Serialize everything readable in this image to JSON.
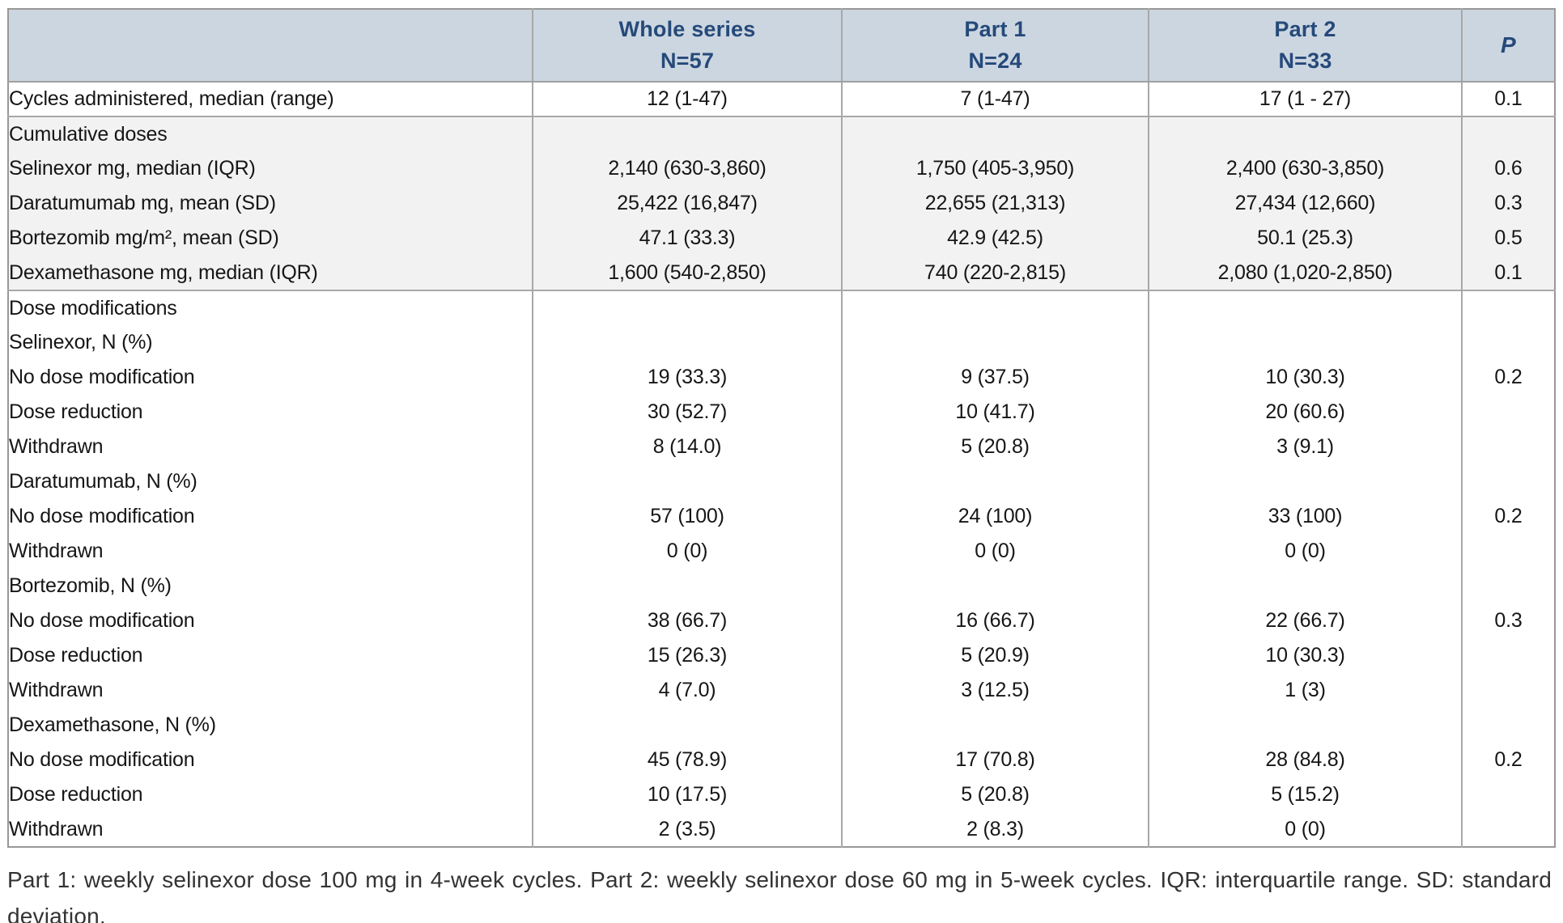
{
  "colors": {
    "header_bg": "#ccd6e0",
    "header_text": "#25497a",
    "section_shade": "#f2f2f2",
    "border": "#a8a8a8"
  },
  "table": {
    "p_header": "P",
    "columns": [
      {
        "label": "Whole series",
        "sub": "N=57"
      },
      {
        "label": "Part 1",
        "sub": "N=24"
      },
      {
        "label": "Part 2",
        "sub": "N=33"
      }
    ],
    "rows": [
      {
        "label": "Cycles administered, median (range)",
        "indent": 0,
        "shaded": false,
        "section_start": false,
        "values": [
          "12 (1-47)",
          "7 (1-47)",
          "17 (1 - 27)"
        ],
        "p": "0.1"
      },
      {
        "label": "Cumulative doses",
        "indent": 0,
        "shaded": true,
        "section_start": true,
        "values": [
          "",
          "",
          ""
        ],
        "p": ""
      },
      {
        "label": "Selinexor mg, median (IQR)",
        "indent": 1,
        "shaded": true,
        "section_start": false,
        "values": [
          "2,140 (630-3,860)",
          "1,750 (405-3,950)",
          "2,400 (630-3,850)"
        ],
        "p": "0.6"
      },
      {
        "label": "Daratumumab mg, mean (SD)",
        "indent": 1,
        "shaded": true,
        "section_start": false,
        "values": [
          "25,422 (16,847)",
          "22,655 (21,313)",
          "27,434 (12,660)"
        ],
        "p": "0.3"
      },
      {
        "label": "Bortezomib mg/m², mean (SD)",
        "indent": 1,
        "shaded": true,
        "section_start": false,
        "values": [
          "47.1 (33.3)",
          "42.9 (42.5)",
          "50.1 (25.3)"
        ],
        "p": "0.5"
      },
      {
        "label": "Dexamethasone mg, median (IQR)",
        "indent": 1,
        "shaded": true,
        "section_start": false,
        "values": [
          "1,600 (540-2,850)",
          "740 (220-2,815)",
          "2,080 (1,020-2,850)"
        ],
        "p": "0.1"
      },
      {
        "label": "Dose modifications",
        "indent": 0,
        "shaded": false,
        "section_start": true,
        "values": [
          "",
          "",
          ""
        ],
        "p": ""
      },
      {
        "label": "Selinexor, N (%)",
        "indent": 1,
        "shaded": false,
        "section_start": false,
        "values": [
          "",
          "",
          ""
        ],
        "p": ""
      },
      {
        "label": "No dose modification",
        "indent": 2,
        "shaded": false,
        "section_start": false,
        "values": [
          "19 (33.3)",
          "9 (37.5)",
          "10 (30.3)"
        ],
        "p": "0.2"
      },
      {
        "label": "Dose reduction",
        "indent": 2,
        "shaded": false,
        "section_start": false,
        "values": [
          "30 (52.7)",
          "10 (41.7)",
          "20 (60.6)"
        ],
        "p": ""
      },
      {
        "label": "Withdrawn",
        "indent": 2,
        "shaded": false,
        "section_start": false,
        "values": [
          "8 (14.0)",
          "5 (20.8)",
          "3 (9.1)"
        ],
        "p": ""
      },
      {
        "label": "Daratumumab, N (%)",
        "indent": 1,
        "shaded": false,
        "section_start": false,
        "values": [
          "",
          "",
          ""
        ],
        "p": ""
      },
      {
        "label": "No dose modification",
        "indent": 2,
        "shaded": false,
        "section_start": false,
        "values": [
          "57 (100)",
          "24 (100)",
          "33 (100)"
        ],
        "p": "0.2"
      },
      {
        "label": "Withdrawn",
        "indent": 2,
        "shaded": false,
        "section_start": false,
        "values": [
          "0 (0)",
          "0 (0)",
          "0 (0)"
        ],
        "p": ""
      },
      {
        "label": "Bortezomib, N (%)",
        "indent": 1,
        "shaded": false,
        "section_start": false,
        "values": [
          "",
          "",
          ""
        ],
        "p": ""
      },
      {
        "label": "No dose modification",
        "indent": 2,
        "shaded": false,
        "section_start": false,
        "values": [
          "38 (66.7)",
          "16 (66.7)",
          "22 (66.7)"
        ],
        "p": "0.3"
      },
      {
        "label": "Dose reduction",
        "indent": 2,
        "shaded": false,
        "section_start": false,
        "values": [
          "15 (26.3)",
          "5 (20.9)",
          "10 (30.3)"
        ],
        "p": ""
      },
      {
        "label": "Withdrawn",
        "indent": 2,
        "shaded": false,
        "section_start": false,
        "values": [
          "4 (7.0)",
          "3 (12.5)",
          "1 (3)"
        ],
        "p": ""
      },
      {
        "label": "Dexamethasone, N (%)",
        "indent": 1,
        "shaded": false,
        "section_start": false,
        "values": [
          "",
          "",
          ""
        ],
        "p": ""
      },
      {
        "label": "No dose modification",
        "indent": 2,
        "shaded": false,
        "section_start": false,
        "values": [
          "45 (78.9)",
          "17 (70.8)",
          "28 (84.8)"
        ],
        "p": "0.2"
      },
      {
        "label": "Dose reduction",
        "indent": 2,
        "shaded": false,
        "section_start": false,
        "values": [
          "10 (17.5)",
          "5 (20.8)",
          "5 (15.2)"
        ],
        "p": ""
      },
      {
        "label": "Withdrawn",
        "indent": 2,
        "shaded": false,
        "section_start": false,
        "values": [
          "2 (3.5)",
          "2 (8.3)",
          "0 (0)"
        ],
        "p": ""
      }
    ]
  },
  "footnote": "Part 1: weekly selinexor dose 100 mg in 4-week cycles. Part 2: weekly selinexor dose 60 mg in 5-week cycles. IQR: interquartile range. SD: standard deviation."
}
